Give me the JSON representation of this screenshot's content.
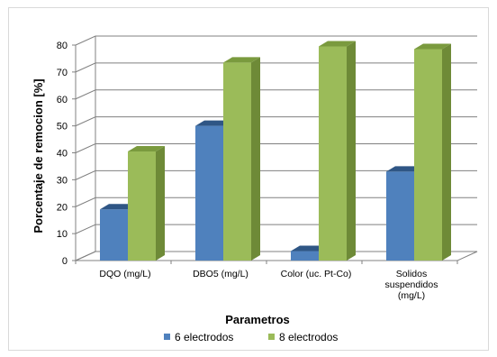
{
  "chart_data": {
    "type": "bar",
    "title": "",
    "xlabel": "Parametros",
    "ylabel": "Porcentaje de remocion [%]",
    "ylim": [
      0,
      80
    ],
    "yticks": [
      0,
      10,
      20,
      30,
      40,
      50,
      60,
      70,
      80
    ],
    "grid": true,
    "legend_position": "bottom",
    "categories": [
      [
        "DQO (mg/L)"
      ],
      [
        "DBO5 (mg/L)"
      ],
      [
        "Color (uc. Pt-Co)"
      ],
      [
        "Solidos",
        "suspendidos",
        "(mg/L)"
      ]
    ],
    "series": [
      {
        "name": "6 electrodos",
        "color": "#4f81bd",
        "side_color": "#3a6395",
        "top_color": "#2f5685",
        "values": [
          19,
          50,
          3.5,
          33
        ]
      },
      {
        "name": "8 electrodos",
        "color": "#9bbb59",
        "side_color": "#6e8a37",
        "top_color": "#7a9a3e",
        "values": [
          40.5,
          73.5,
          79.5,
          78.5
        ]
      }
    ]
  }
}
